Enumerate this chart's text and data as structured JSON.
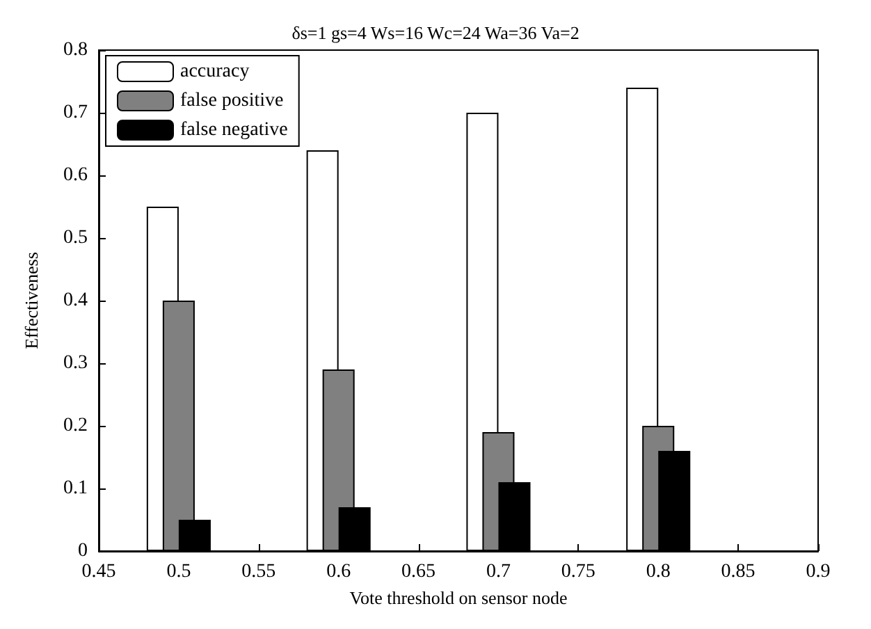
{
  "chart_data": {
    "type": "bar",
    "title": "δs=1 gs=4 Ws=16 Wc=24 Wa=36 Va=2",
    "xlabel": "Vote threshold on sensor node",
    "ylabel": "Effectiveness",
    "x": [
      0.5,
      0.6,
      0.7,
      0.8
    ],
    "series": [
      {
        "name": "accuracy",
        "color": "#ffffff",
        "values": [
          0.55,
          0.64,
          0.7,
          0.74
        ]
      },
      {
        "name": "false positive",
        "color": "#808080",
        "values": [
          0.4,
          0.29,
          0.19,
          0.2
        ]
      },
      {
        "name": "false negative",
        "color": "#000000",
        "values": [
          0.05,
          0.07,
          0.11,
          0.16
        ]
      }
    ],
    "xlim": [
      0.45,
      0.9
    ],
    "xticks": [
      0.45,
      0.5,
      0.55,
      0.6,
      0.65,
      0.7,
      0.75,
      0.8,
      0.85,
      0.9
    ],
    "ylim": [
      0,
      0.8
    ],
    "yticks": [
      0,
      0.1,
      0.2,
      0.3,
      0.4,
      0.5,
      0.6,
      0.7,
      0.8
    ],
    "grid": false,
    "legend": "top left"
  }
}
